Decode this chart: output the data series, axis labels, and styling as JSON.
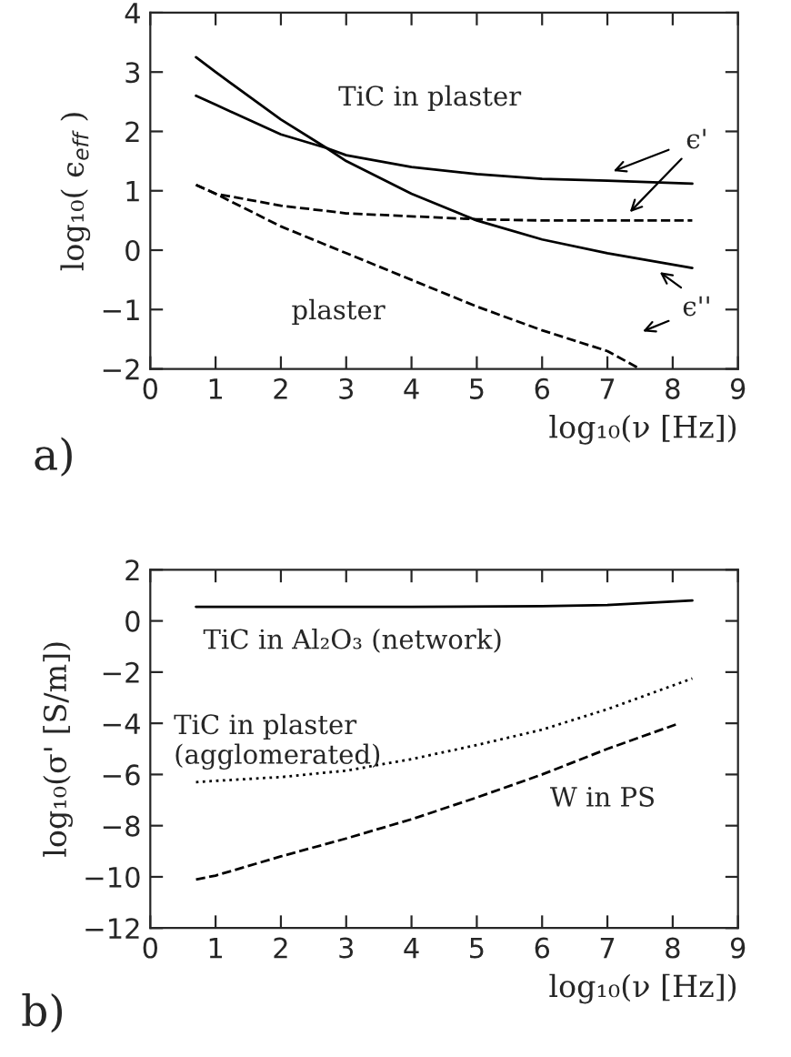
{
  "chart_data": [
    {
      "type": "line",
      "xlabel": "log₁₀(ν [Hz])",
      "ylabel": "log₁₀( ϵ$_{eff}$ )",
      "xlim": [
        0,
        9
      ],
      "ylim": [
        -2,
        4
      ],
      "xticks": [
        0,
        1,
        2,
        3,
        4,
        5,
        6,
        7,
        8,
        9
      ],
      "yticks": [
        {
          "value": -2,
          "label": "−2"
        },
        {
          "value": -1,
          "label": "−1"
        },
        0,
        1,
        2,
        3,
        4
      ],
      "series": [
        {
          "color": "#000000",
          "line_style": "solid",
          "x": [
            0.7,
            1,
            2,
            2.7,
            3,
            4,
            5,
            6,
            7,
            8.3
          ],
          "values": [
            2.6,
            2.45,
            1.95,
            1.72,
            1.6,
            1.4,
            1.28,
            1.2,
            1.17,
            1.12
          ]
        },
        {
          "color": "#000000",
          "line_style": "solid",
          "x": [
            0.7,
            1,
            2,
            2.7,
            3,
            4,
            5,
            6,
            7,
            8.3
          ],
          "values": [
            3.25,
            3.0,
            2.2,
            1.72,
            1.5,
            0.95,
            0.5,
            0.18,
            -0.05,
            -0.3
          ]
        },
        {
          "color": "#000000",
          "line_style": "dashed",
          "x": [
            0.7,
            1,
            2,
            3,
            4,
            5,
            6,
            7,
            8.3
          ],
          "values": [
            1.1,
            0.95,
            0.75,
            0.62,
            0.57,
            0.52,
            0.5,
            0.5,
            0.5
          ]
        },
        {
          "color": "#000000",
          "line_style": "dashed",
          "x": [
            0.7,
            1,
            2,
            3,
            4,
            5,
            6,
            7,
            7.5
          ],
          "values": [
            1.1,
            0.95,
            0.4,
            -0.05,
            -0.5,
            -0.95,
            -1.35,
            -1.7,
            -2
          ]
        }
      ],
      "annotations": [
        "TiC in plaster",
        "plaster",
        "ϵ'",
        "ϵ''",
        "a)"
      ],
      "grid": false,
      "legend": false
    },
    {
      "type": "line",
      "xlabel": "log₁₀(ν [Hz])",
      "ylabel": "log₁₀(σ' [S/m])",
      "xlim": [
        0,
        9
      ],
      "ylim": [
        -12,
        2
      ],
      "xticks": [
        0,
        1,
        2,
        3,
        4,
        5,
        6,
        7,
        8,
        9
      ],
      "yticks": [
        {
          "value": -12,
          "label": "−12"
        },
        {
          "value": -10,
          "label": "−10"
        },
        {
          "value": -8,
          "label": "−8"
        },
        {
          "value": -6,
          "label": "−6"
        },
        {
          "value": -4,
          "label": "−4"
        },
        {
          "value": -2,
          "label": "−2"
        },
        0,
        2
      ],
      "series": [
        {
          "color": "#000000",
          "line_style": "solid",
          "x": [
            0.7,
            2,
            4,
            6,
            7,
            8.3
          ],
          "values": [
            0.55,
            0.55,
            0.55,
            0.58,
            0.62,
            0.8
          ]
        },
        {
          "color": "#000000",
          "line_style": "dotted",
          "x": [
            0.7,
            1,
            2,
            3,
            4,
            5,
            6,
            7,
            8.3
          ],
          "values": [
            -6.3,
            -6.25,
            -6.1,
            -5.85,
            -5.4,
            -4.85,
            -4.25,
            -3.45,
            -2.25
          ]
        },
        {
          "color": "#000000",
          "line_style": "dashed",
          "x": [
            0.7,
            1,
            2,
            3,
            4,
            5,
            6,
            7,
            8.1
          ],
          "values": [
            -10.1,
            -9.95,
            -9.2,
            -8.5,
            -7.75,
            -6.9,
            -6.0,
            -5.0,
            -4.0
          ]
        }
      ],
      "annotations": [
        "TiC in Al₂O₃ (network)",
        "TiC in plaster\n(agglomerated)",
        "W in PS",
        "b)"
      ],
      "grid": false,
      "legend": false
    }
  ]
}
